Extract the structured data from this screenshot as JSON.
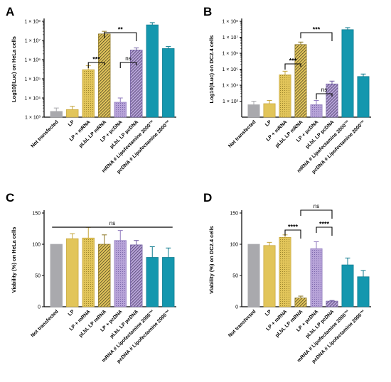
{
  "categories": [
    "Not transfected",
    "LP",
    "LP + mRNA",
    "pLbL LP mRNA",
    "LP + pcDNA",
    "pLbL LP pcDNA",
    "mRNA # Lipofectamine 2000™",
    "pcDNA # Lipofectamine 2000™"
  ],
  "colors": {
    "grey": "#a9a9ad",
    "yellow": "#e2c55a",
    "purple": "#b7a3d8",
    "teal": "#1497ae"
  },
  "chart_data": [
    {
      "panel": "A",
      "type": "bar",
      "scale": "log",
      "ylabel": "Log10(ILuc) on HeLa cells",
      "ylim": [
        1000,
        100000000
      ],
      "ticks": [
        "1 × 10³",
        "1 × 10⁴",
        "1 × 10⁵",
        "1 × 10⁶",
        "1 × 10⁷",
        "1 × 10⁸"
      ],
      "values": [
        2000,
        2500,
        300000,
        22000000,
        6000,
        3200000,
        65000000,
        3800000
      ],
      "errors": [
        1000,
        1200,
        180000,
        8000000,
        4000,
        900000,
        20000000,
        1000000
      ],
      "brackets": [
        {
          "from": 2,
          "to": 3,
          "label": "***"
        },
        {
          "from": 3,
          "to": 5,
          "label": "**"
        },
        {
          "from": 4,
          "to": 5,
          "label": "ns"
        }
      ]
    },
    {
      "panel": "B",
      "type": "bar",
      "scale": "log",
      "ylabel": "Log10(ILuc) on DC2.4 cells",
      "ylim": [
        100,
        100000000
      ],
      "ticks": [
        "1 × 10³",
        "1 × 10⁴",
        "1 × 10⁵",
        "1 × 10⁶",
        "1 × 10⁷",
        "1 × 10⁸"
      ],
      "values": [
        600,
        700,
        45000,
        3500000,
        600,
        12000,
        30000000,
        35000
      ],
      "errors": [
        400,
        400,
        30000,
        1500000,
        500,
        6000,
        10000000,
        15000
      ],
      "brackets": [
        {
          "from": 2,
          "to": 3,
          "label": "***"
        },
        {
          "from": 3,
          "to": 5,
          "label": "***"
        },
        {
          "from": 4,
          "to": 5,
          "label": "ns"
        }
      ]
    },
    {
      "panel": "C",
      "type": "bar",
      "scale": "linear",
      "ylabel": "Viability (%) on HeLa cells",
      "ylim": [
        0,
        150
      ],
      "ticks": [
        "0",
        "50",
        "100",
        "150"
      ],
      "values": [
        100,
        109,
        110,
        100,
        106,
        99,
        79,
        79
      ],
      "errors": [
        0,
        8,
        17,
        15,
        16,
        7,
        17,
        15
      ],
      "brackets": [
        {
          "from": 0,
          "to": 7,
          "label": "ns"
        }
      ]
    },
    {
      "panel": "D",
      "type": "bar",
      "scale": "linear",
      "ylabel": "Viability (%) on DC2.4 cells",
      "ylim": [
        0,
        150
      ],
      "ticks": [
        "0",
        "50",
        "100",
        "150"
      ],
      "values": [
        100,
        98,
        111,
        14,
        93,
        9,
        67,
        48
      ],
      "errors": [
        0,
        5,
        4,
        3,
        11,
        1,
        11,
        10
      ],
      "brackets": [
        {
          "from": 2,
          "to": 3,
          "label": "****"
        },
        {
          "from": 3,
          "to": 5,
          "label": "ns"
        },
        {
          "from": 4,
          "to": 5,
          "label": "****"
        }
      ]
    }
  ]
}
